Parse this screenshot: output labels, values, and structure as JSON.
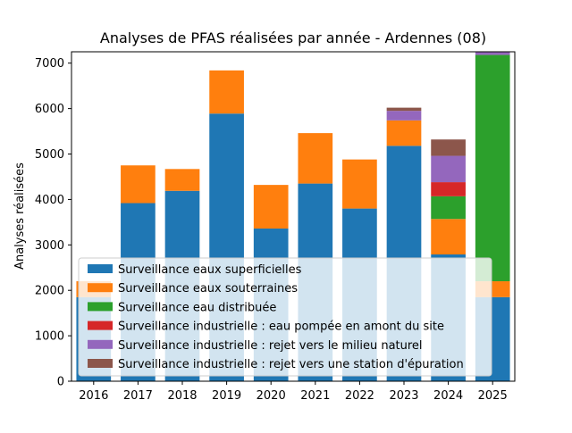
{
  "chart_data": {
    "type": "bar",
    "stacked": true,
    "title": "Analyses de PFAS réalisées par année - Ardennes (08)",
    "xlabel": "",
    "ylabel": "Analyses réalisées",
    "ylim": [
      0,
      7250
    ],
    "yticks": [
      0,
      1000,
      2000,
      3000,
      4000,
      5000,
      6000,
      7000
    ],
    "categories": [
      "2016",
      "2017",
      "2018",
      "2019",
      "2020",
      "2021",
      "2022",
      "2023",
      "2024",
      "2025"
    ],
    "legend_position": "lower-center",
    "series": [
      {
        "name": "Surveillance eaux superficielles",
        "color": "#1f77b4",
        "values": [
          1850,
          3920,
          4190,
          5890,
          3360,
          4350,
          3800,
          5180,
          2790,
          1850
        ]
      },
      {
        "name": "Surveillance eaux souterraines",
        "color": "#ff7f0e",
        "values": [
          350,
          830,
          480,
          950,
          960,
          1110,
          1080,
          560,
          780,
          350
        ]
      },
      {
        "name": "Surveillance eau distribuée",
        "color": "#2ca02c",
        "values": [
          0,
          0,
          0,
          0,
          0,
          0,
          0,
          0,
          500,
          4980
        ]
      },
      {
        "name": "Surveillance industrielle : eau pompée en amont du site",
        "color": "#d62728",
        "values": [
          0,
          0,
          0,
          0,
          0,
          0,
          0,
          0,
          310,
          0
        ]
      },
      {
        "name": "Surveillance industrielle : rejet vers le milieu naturel",
        "color": "#9467bd",
        "values": [
          0,
          0,
          0,
          0,
          0,
          0,
          0,
          210,
          580,
          80
        ]
      },
      {
        "name": "Surveillance industrielle : rejet vers une station d'épuration",
        "color": "#8c564b",
        "values": [
          0,
          0,
          0,
          0,
          0,
          0,
          0,
          70,
          360,
          0
        ]
      }
    ]
  }
}
